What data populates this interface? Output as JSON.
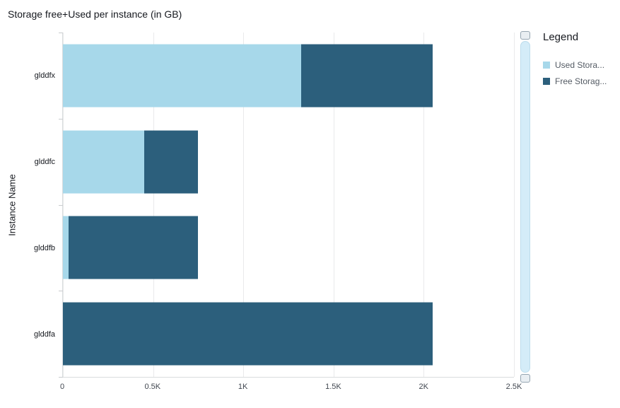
{
  "chart": {
    "title": "Storage free+Used per instance (in GB)",
    "ylabel": "Instance Name"
  },
  "legend": {
    "title": "Legend",
    "items": [
      {
        "label": "Used Stora...",
        "series": "Used Storage"
      },
      {
        "label": "Free Storag...",
        "series": "Free Storage"
      }
    ]
  },
  "chart_data": {
    "type": "bar",
    "orientation": "horizontal",
    "stacked": true,
    "title": "Storage free+Used per instance (in GB)",
    "xlabel": "",
    "ylabel": "Instance Name",
    "categories": [
      "glddfx",
      "glddfc",
      "glddfb",
      "glddfa"
    ],
    "series": [
      {
        "name": "Used Storage",
        "color": "#a7d8ea",
        "values": [
          1320,
          450,
          30,
          0
        ]
      },
      {
        "name": "Free Storage",
        "color": "#2c5f7c",
        "values": [
          730,
          300,
          720,
          2050
        ]
      }
    ],
    "totals": [
      2050,
      750,
      750,
      2050
    ],
    "xlim": [
      0,
      2500
    ],
    "x_ticks": [
      {
        "value": 0,
        "label": "0"
      },
      {
        "value": 500,
        "label": "0.5K"
      },
      {
        "value": 1000,
        "label": "1K"
      },
      {
        "value": 1500,
        "label": "1.5K"
      },
      {
        "value": 2000,
        "label": "2K"
      },
      {
        "value": 2500,
        "label": "2.5K"
      }
    ],
    "grid": true,
    "legend_position": "right"
  }
}
